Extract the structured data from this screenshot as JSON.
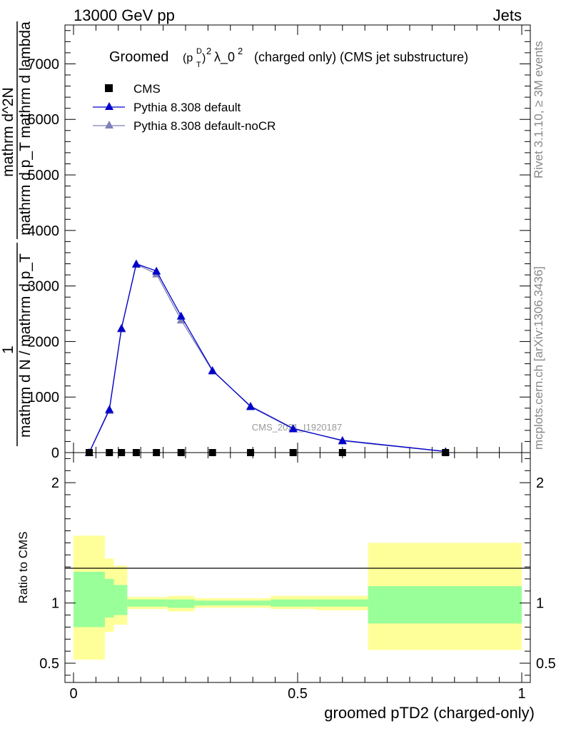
{
  "header": {
    "left": "13000 GeV pp",
    "right": "Jets"
  },
  "side_labels": {
    "rivet": "Rivet 3.1.10, ≥ 3M events",
    "mcplots": "mcplots.cern.ch [arXiv:1306.3436]"
  },
  "watermark": "CMS_2021_I1920187",
  "colors": {
    "cms": "#000000",
    "default": "#0000cc",
    "nocr": "#8080b8",
    "band_outer": "#ffff99",
    "band_inner": "#99ff99"
  },
  "chart_data": [
    {
      "type": "line",
      "title": "Groomed (p_T^D)^2 λ_0^2  (charged only) (CMS jet substructure)",
      "title_parts": {
        "prefix": "Groomed",
        "p": "(p",
        "sup_d": "D",
        "sub_t": "T",
        "close": ")",
        "sup_2": "2",
        "lambda": "λ_0",
        "sup_2b": "2",
        "suffix": "(charged only) (CMS jet substructure)"
      },
      "ylabel": {
        "frac1_num": "1",
        "frac1_den": "mathrm d N / mathrm d p_T",
        "frac2_num": "mathrm d^2N",
        "frac2_den": "mathrm d p_T mathrm d lambda"
      },
      "xlim": [
        0,
        1
      ],
      "ylim": [
        0,
        7700
      ],
      "yticks": [
        0,
        1000,
        2000,
        3000,
        4000,
        5000,
        6000,
        7000
      ],
      "yticklabels": [
        "0",
        "1000",
        "2000",
        "3000",
        "4000",
        "5000",
        "6000",
        "7000"
      ],
      "legend": [
        {
          "label": "CMS",
          "marker": "square"
        },
        {
          "label": "Pythia 8.308 default",
          "marker": "triangle"
        },
        {
          "label": "Pythia 8.308 default-noCR",
          "marker": "triangle"
        }
      ],
      "series": [
        {
          "name": "CMS",
          "x": [
            0.035,
            0.08,
            0.107,
            0.14,
            0.185,
            0.24,
            0.31,
            0.395,
            0.49,
            0.6,
            0.83
          ],
          "y": [
            0,
            0,
            0,
            0,
            0,
            0,
            0,
            0,
            0,
            0,
            0
          ]
        },
        {
          "name": "Pythia 8.308 default",
          "x": [
            0.035,
            0.08,
            0.107,
            0.14,
            0.185,
            0.24,
            0.31,
            0.395,
            0.49,
            0.6,
            0.83
          ],
          "y": [
            0,
            780,
            2240,
            3400,
            3270,
            2460,
            1480,
            830,
            430,
            220,
            20
          ]
        },
        {
          "name": "Pythia 8.308 default-noCR",
          "x": [
            0.035,
            0.08,
            0.107,
            0.14,
            0.185,
            0.24,
            0.31,
            0.395,
            0.49,
            0.6,
            0.83
          ],
          "y": [
            0,
            760,
            2230,
            3390,
            3220,
            2390,
            1470,
            840,
            440,
            210,
            20
          ]
        }
      ]
    },
    {
      "type": "area",
      "ylabel": "Ratio to CMS",
      "xlabel": "groomed pTD2 (charged-only)",
      "xlim": [
        0,
        1
      ],
      "ylim": [
        0.34,
        2.25
      ],
      "yticks": [
        0.5,
        1,
        2
      ],
      "yticklabels": [
        "0.5",
        "1",
        "2"
      ],
      "xticks": [
        0,
        0.5,
        1
      ],
      "xticklabels": [
        "0",
        "0.5",
        "1"
      ],
      "bins": [
        {
          "x0": 0.0,
          "x1": 0.07,
          "inner": [
            0.8,
            1.26
          ],
          "outer": [
            0.53,
            1.56
          ]
        },
        {
          "x0": 0.07,
          "x1": 0.09,
          "inner": [
            0.88,
            1.2
          ],
          "outer": [
            0.76,
            1.37
          ]
        },
        {
          "x0": 0.09,
          "x1": 0.12,
          "inner": [
            0.9,
            1.15
          ],
          "outer": [
            0.82,
            1.31
          ]
        },
        {
          "x0": 0.12,
          "x1": 0.21,
          "inner": [
            0.97,
            1.03
          ],
          "outer": [
            0.95,
            1.05
          ]
        },
        {
          "x0": 0.21,
          "x1": 0.27,
          "inner": [
            0.96,
            1.03
          ],
          "outer": [
            0.93,
            1.06
          ]
        },
        {
          "x0": 0.27,
          "x1": 0.44,
          "inner": [
            0.98,
            1.02
          ],
          "outer": [
            0.96,
            1.04
          ]
        },
        {
          "x0": 0.44,
          "x1": 0.54,
          "inner": [
            0.97,
            1.03
          ],
          "outer": [
            0.95,
            1.06
          ]
        },
        {
          "x0": 0.54,
          "x1": 0.657,
          "inner": [
            0.97,
            1.03
          ],
          "outer": [
            0.94,
            1.06
          ]
        },
        {
          "x0": 0.657,
          "x1": 1.0,
          "inner": [
            0.83,
            1.14
          ],
          "outer": [
            0.61,
            1.5
          ]
        }
      ]
    }
  ]
}
